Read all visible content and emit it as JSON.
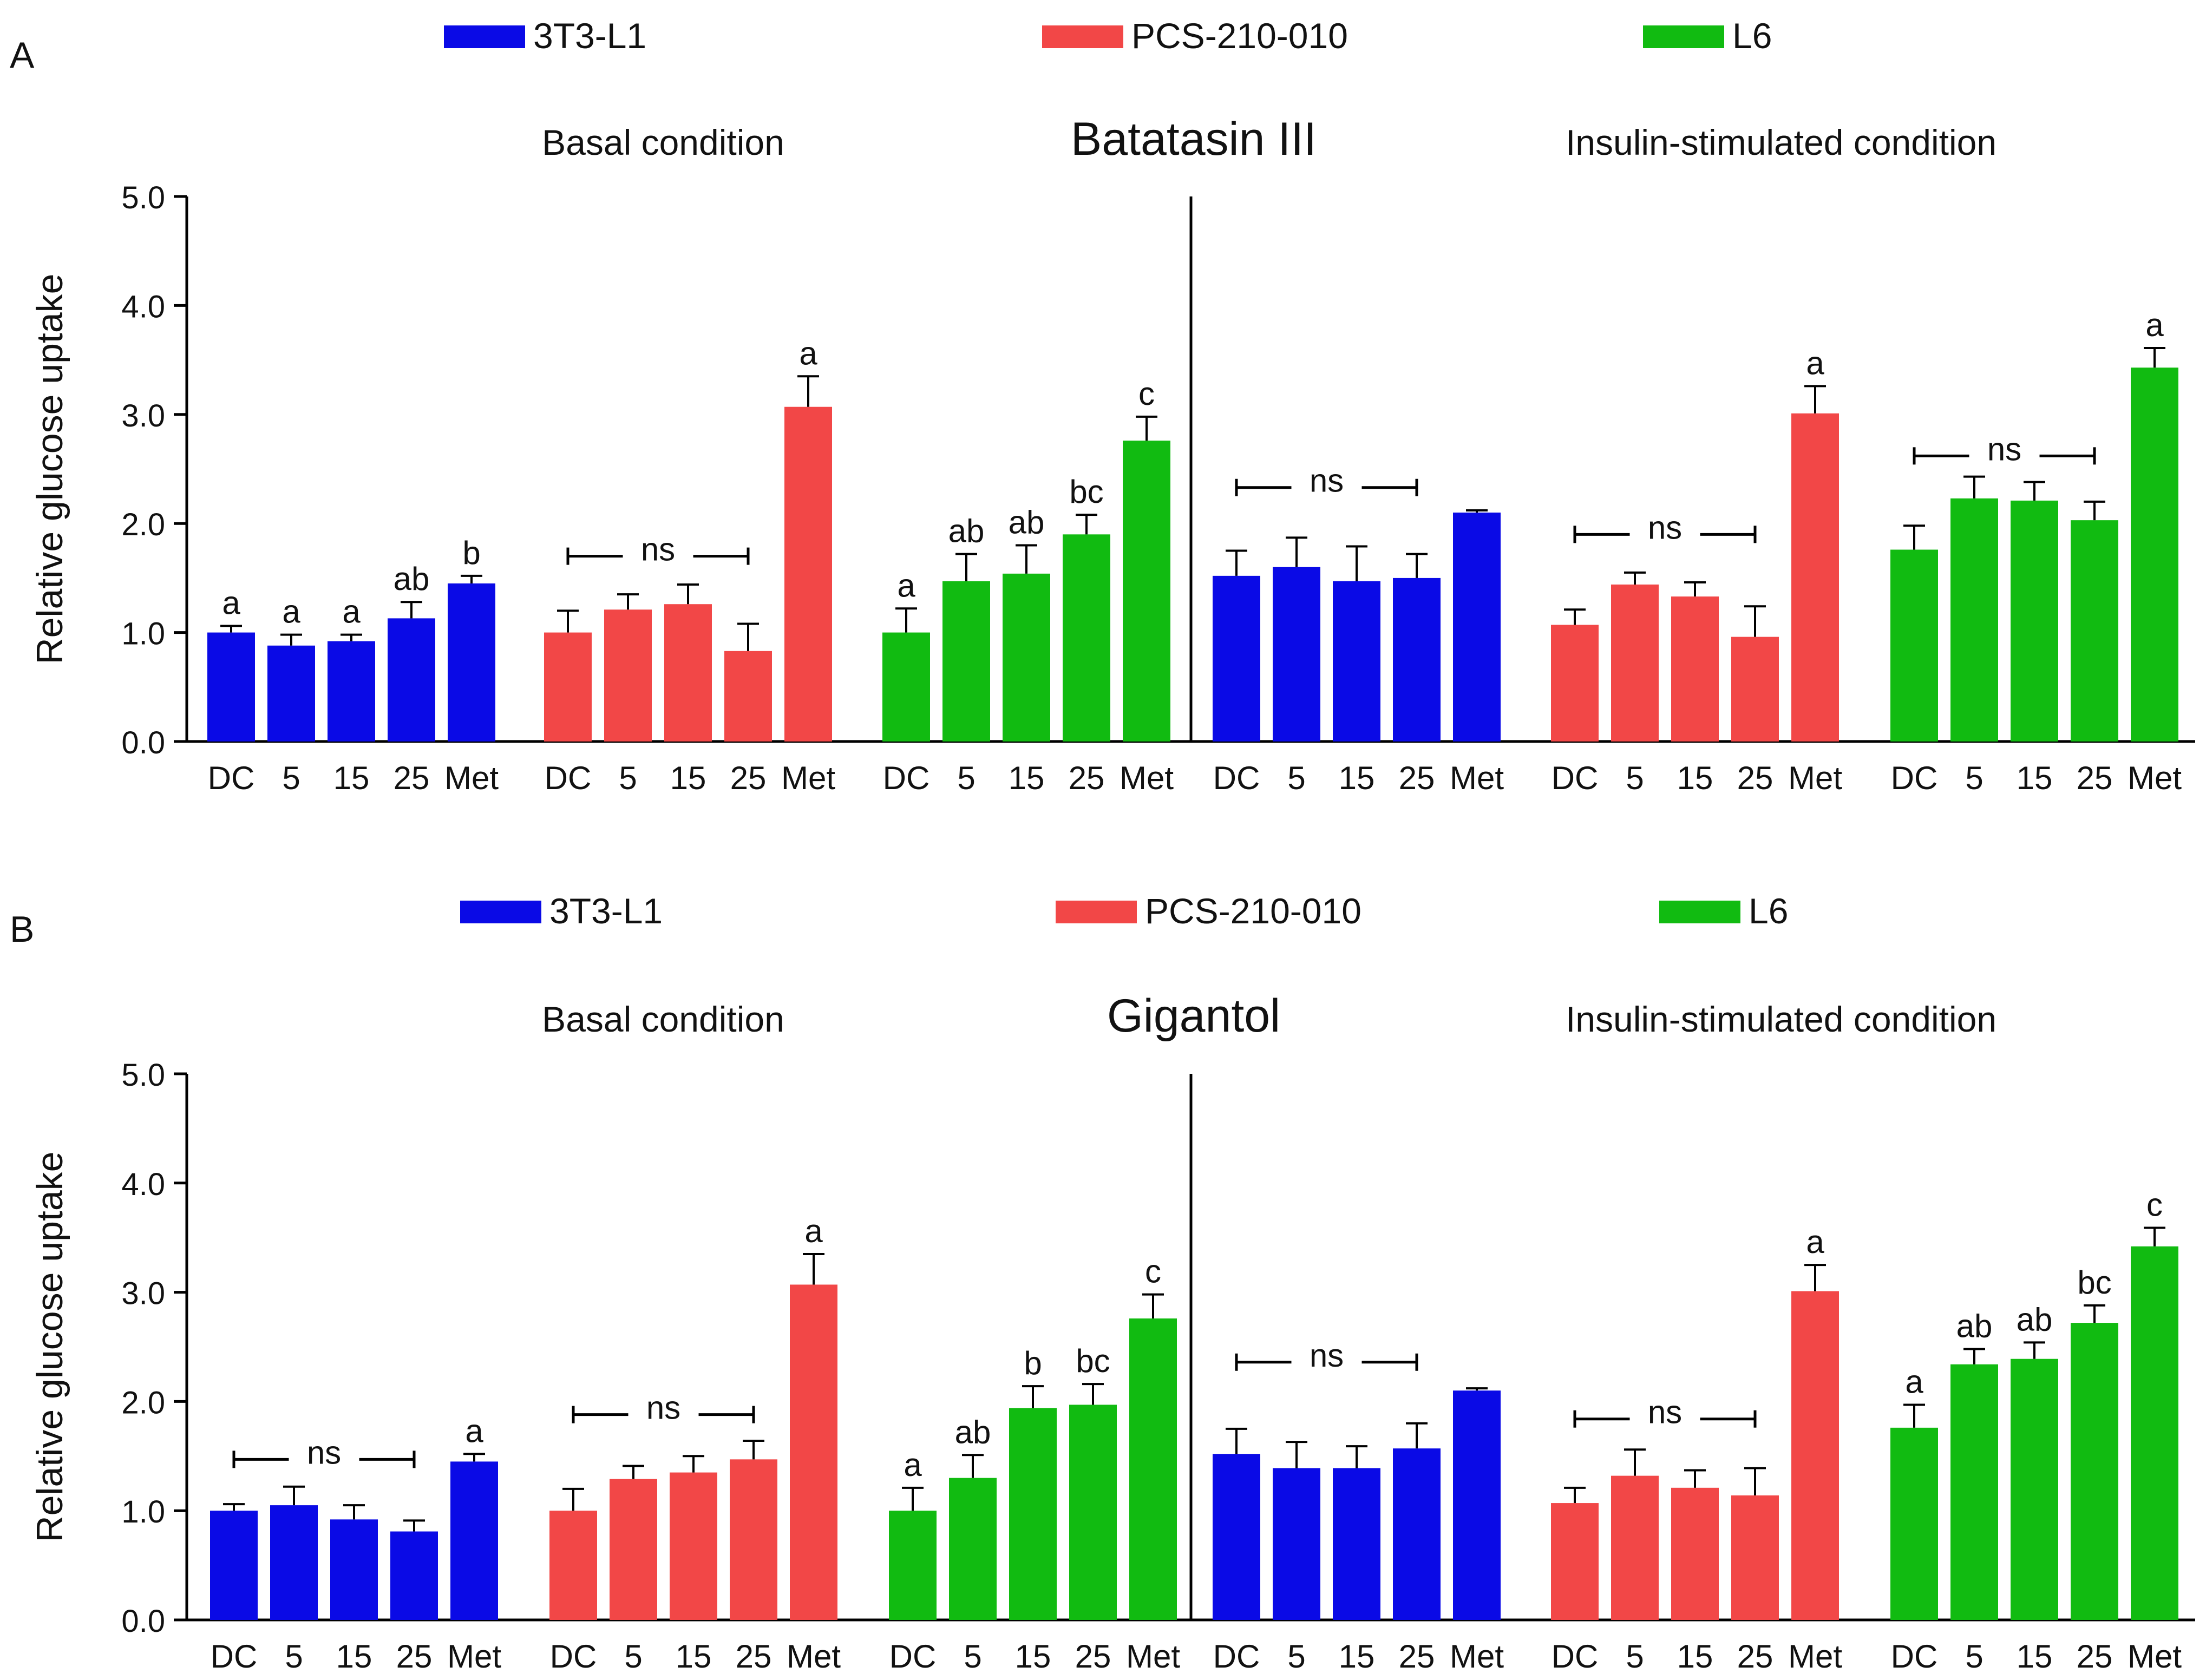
{
  "colors": {
    "3T3-L1": "#0a0ae6",
    "PCS-210-010": "#f24747",
    "L6": "#11bb11",
    "axis": "#000000"
  },
  "chart_data": [
    {
      "panel_label": "A",
      "type": "bar",
      "title": "Batatasin III",
      "subtitles": [
        "Basal condition",
        "Insulin-stimulated condition"
      ],
      "ylabel": "Relative glucose uptake",
      "ylim": [
        0,
        5
      ],
      "yticks": [
        "0.0",
        "1.0",
        "2.0",
        "3.0",
        "4.0",
        "5.0"
      ],
      "legend": [
        "3T3-L1",
        "PCS-210-010",
        "L6"
      ],
      "categories": [
        "DC",
        "5",
        "15",
        "25",
        "Met"
      ],
      "groups": [
        {
          "condition": "Basal condition",
          "series": "3T3-L1",
          "values": [
            1.0,
            0.88,
            0.92,
            1.13,
            1.45
          ],
          "errors": [
            0.06,
            0.1,
            0.06,
            0.15,
            0.07
          ],
          "labels": [
            "a",
            "a",
            "a",
            "ab",
            "b"
          ],
          "ns": null
        },
        {
          "condition": "Basal condition",
          "series": "PCS-210-010",
          "values": [
            1.0,
            1.21,
            1.26,
            0.83,
            3.07
          ],
          "errors": [
            0.2,
            0.14,
            0.18,
            0.25,
            0.28
          ],
          "labels": [
            "",
            "",
            "",
            "",
            "a"
          ],
          "ns": {
            "text": "ns",
            "y": 1.7
          }
        },
        {
          "condition": "Basal condition",
          "series": "L6",
          "values": [
            1.0,
            1.47,
            1.54,
            1.9,
            2.76
          ],
          "errors": [
            0.22,
            0.25,
            0.26,
            0.18,
            0.22
          ],
          "labels": [
            "a",
            "ab",
            "ab",
            "bc",
            "c"
          ],
          "ns": null
        },
        {
          "condition": "Insulin-stimulated condition",
          "series": "3T3-L1",
          "values": [
            1.52,
            1.6,
            1.47,
            1.5,
            2.1
          ],
          "errors": [
            0.23,
            0.27,
            0.32,
            0.22,
            0.02
          ],
          "labels": [
            "",
            "",
            "",
            "",
            ""
          ],
          "ns": {
            "text": "ns",
            "y": 2.33
          }
        },
        {
          "condition": "Insulin-stimulated condition",
          "series": "PCS-210-010",
          "values": [
            1.07,
            1.44,
            1.33,
            0.96,
            3.01
          ],
          "errors": [
            0.14,
            0.11,
            0.13,
            0.28,
            0.25
          ],
          "labels": [
            "",
            "",
            "",
            "",
            "a"
          ],
          "ns": {
            "text": "ns",
            "y": 1.9
          }
        },
        {
          "condition": "Insulin-stimulated condition",
          "series": "L6",
          "values": [
            1.76,
            2.23,
            2.21,
            2.03,
            3.43
          ],
          "errors": [
            0.22,
            0.2,
            0.17,
            0.17,
            0.18
          ],
          "labels": [
            "",
            "",
            "",
            "",
            "a"
          ],
          "ns": {
            "text": "ns",
            "y": 2.62
          }
        }
      ]
    },
    {
      "panel_label": "B",
      "type": "bar",
      "title": "Gigantol",
      "subtitles": [
        "Basal condition",
        "Insulin-stimulated condition"
      ],
      "ylabel": "Relative glucose uptake",
      "ylim": [
        0,
        5
      ],
      "yticks": [
        "0.0",
        "1.0",
        "2.0",
        "3.0",
        "4.0",
        "5.0"
      ],
      "legend": [
        "3T3-L1",
        "PCS-210-010",
        "L6"
      ],
      "categories": [
        "DC",
        "5",
        "15",
        "25",
        "Met"
      ],
      "groups": [
        {
          "condition": "Basal condition",
          "series": "3T3-L1",
          "values": [
            1.0,
            1.05,
            0.92,
            0.81,
            1.45
          ],
          "errors": [
            0.06,
            0.17,
            0.13,
            0.1,
            0.07
          ],
          "labels": [
            "",
            "",
            "",
            "",
            "a"
          ],
          "ns": {
            "text": "ns",
            "y": 1.47
          }
        },
        {
          "condition": "Basal condition",
          "series": "PCS-210-010",
          "values": [
            1.0,
            1.29,
            1.35,
            1.47,
            3.07
          ],
          "errors": [
            0.2,
            0.12,
            0.15,
            0.17,
            0.28
          ],
          "labels": [
            "",
            "",
            "",
            "",
            "a"
          ],
          "ns": {
            "text": "ns",
            "y": 1.88
          }
        },
        {
          "condition": "Basal condition",
          "series": "L6",
          "values": [
            1.0,
            1.3,
            1.94,
            1.97,
            2.76
          ],
          "errors": [
            0.21,
            0.21,
            0.2,
            0.19,
            0.22
          ],
          "labels": [
            "a",
            "ab",
            "b",
            "bc",
            "c"
          ],
          "ns": null
        },
        {
          "condition": "Insulin-stimulated condition",
          "series": "3T3-L1",
          "values": [
            1.52,
            1.39,
            1.39,
            1.57,
            2.1
          ],
          "errors": [
            0.23,
            0.24,
            0.2,
            0.23,
            0.02
          ],
          "labels": [
            "",
            "",
            "",
            "",
            ""
          ],
          "ns": {
            "text": "ns",
            "y": 2.36
          }
        },
        {
          "condition": "Insulin-stimulated condition",
          "series": "PCS-210-010",
          "values": [
            1.07,
            1.32,
            1.21,
            1.14,
            3.01
          ],
          "errors": [
            0.14,
            0.24,
            0.16,
            0.25,
            0.24
          ],
          "labels": [
            "",
            "",
            "",
            "",
            "a"
          ],
          "ns": {
            "text": "ns",
            "y": 1.84
          }
        },
        {
          "condition": "Insulin-stimulated condition",
          "series": "L6",
          "values": [
            1.76,
            2.34,
            2.39,
            2.72,
            3.42
          ],
          "errors": [
            0.21,
            0.14,
            0.15,
            0.16,
            0.17
          ],
          "labels": [
            "a",
            "ab",
            "ab",
            "bc",
            "c"
          ],
          "ns": null
        }
      ]
    }
  ]
}
